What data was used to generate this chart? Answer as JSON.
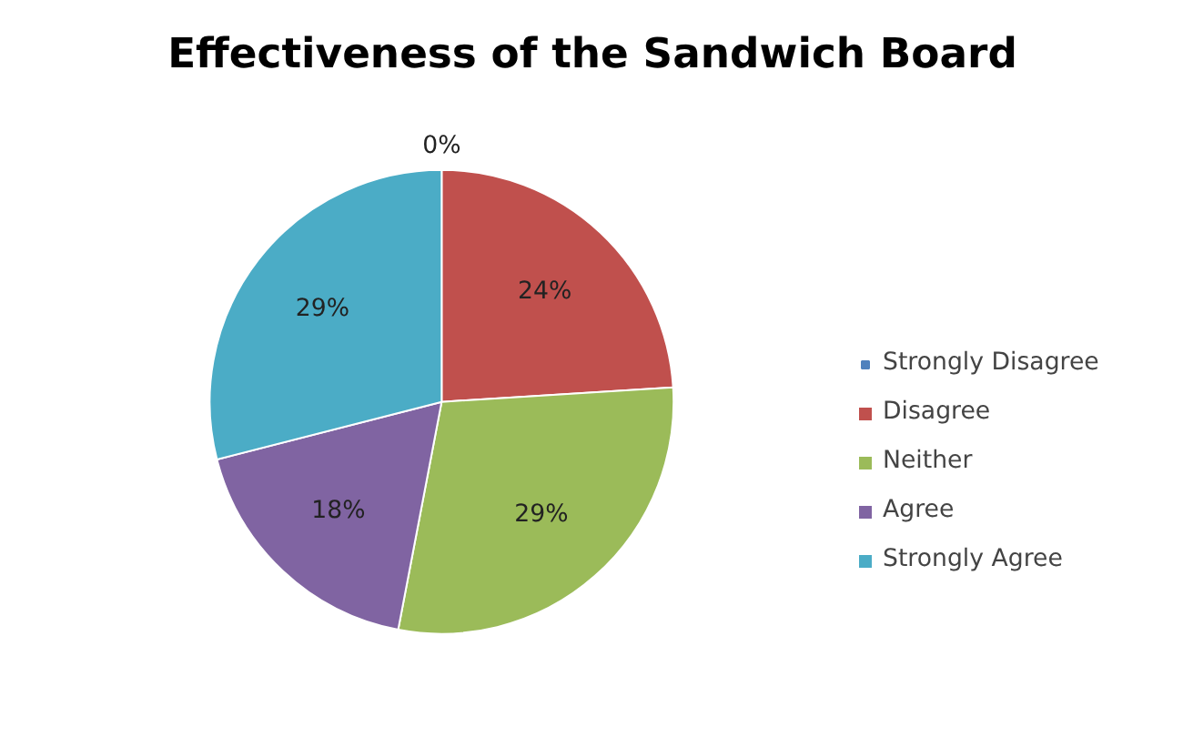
{
  "chart_data": {
    "type": "pie",
    "title": "Effectiveness of the Sandwich Board",
    "categories": [
      "Strongly Disagree",
      "Disagree",
      "Neither",
      "Agree",
      "Strongly Agree"
    ],
    "values": [
      0,
      24,
      29,
      18,
      29
    ],
    "colors": [
      "#4f81bd",
      "#c0504d",
      "#9bbb59",
      "#8064a2",
      "#4bacc6"
    ],
    "value_labels": [
      "0%",
      "24%",
      "29%",
      "18%",
      "29%"
    ],
    "legend": "right"
  }
}
